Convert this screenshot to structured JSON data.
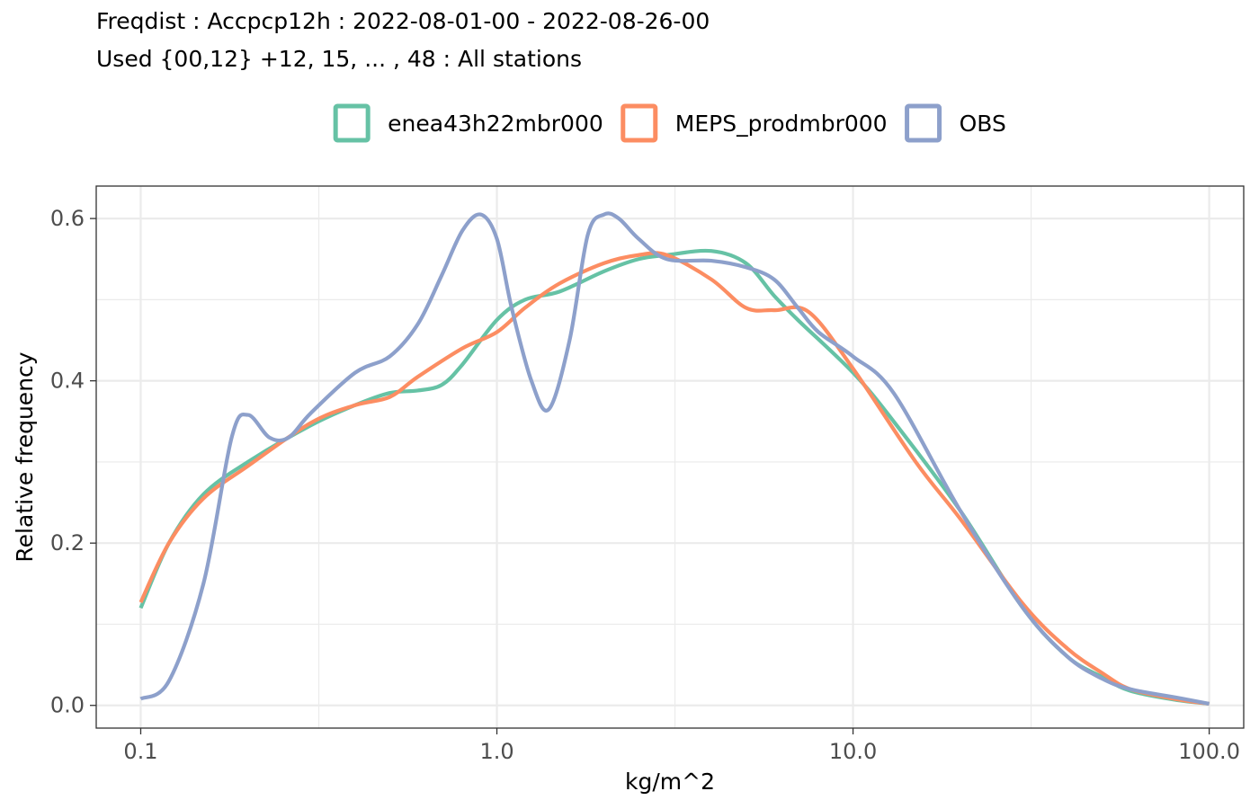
{
  "chart_data": {
    "type": "line",
    "title": "Freqdist : Accpcp12h : 2022-08-01-00 - 2022-08-26-00",
    "subtitle": "Used {00,12} +12, 15, ... , 48 : All stations",
    "xlabel": "kg/m^2",
    "ylabel": "Relative frequency",
    "x_scale": "log10",
    "xlim": [
      0.075,
      125
    ],
    "ylim": [
      -0.028,
      0.64
    ],
    "x_ticks": [
      0.1,
      1.0,
      10.0,
      100.0
    ],
    "x_tick_labels": [
      "0.1",
      "1.0",
      "10.0",
      "100.0"
    ],
    "y_ticks": [
      0.0,
      0.2,
      0.4,
      0.6
    ],
    "y_tick_labels": [
      "0.0",
      "0.2",
      "0.4",
      "0.6"
    ],
    "grid": true,
    "legend_position": "top",
    "series": [
      {
        "name": "enea43h22mbr000",
        "color": "#66c2a5",
        "points": [
          [
            0.1,
            0.12
          ],
          [
            0.12,
            0.2
          ],
          [
            0.15,
            0.26
          ],
          [
            0.2,
            0.3
          ],
          [
            0.3,
            0.345
          ],
          [
            0.4,
            0.37
          ],
          [
            0.5,
            0.385
          ],
          [
            0.6,
            0.388
          ],
          [
            0.7,
            0.395
          ],
          [
            0.8,
            0.42
          ],
          [
            1.0,
            0.475
          ],
          [
            1.2,
            0.5
          ],
          [
            1.5,
            0.51
          ],
          [
            2.0,
            0.535
          ],
          [
            2.5,
            0.55
          ],
          [
            3.0,
            0.555
          ],
          [
            4.0,
            0.56
          ],
          [
            5.0,
            0.545
          ],
          [
            6.0,
            0.505
          ],
          [
            7.0,
            0.475
          ],
          [
            10.0,
            0.41
          ],
          [
            13.0,
            0.35
          ],
          [
            20.0,
            0.24
          ],
          [
            30.0,
            0.12
          ],
          [
            40.0,
            0.06
          ],
          [
            50.0,
            0.035
          ],
          [
            60.0,
            0.018
          ],
          [
            80.0,
            0.007
          ],
          [
            100.0,
            0.002
          ]
        ]
      },
      {
        "name": "MEPS_prodmbr000",
        "color": "#fc8d62",
        "points": [
          [
            0.1,
            0.127
          ],
          [
            0.12,
            0.2
          ],
          [
            0.15,
            0.255
          ],
          [
            0.2,
            0.295
          ],
          [
            0.3,
            0.348
          ],
          [
            0.4,
            0.37
          ],
          [
            0.5,
            0.38
          ],
          [
            0.6,
            0.405
          ],
          [
            0.8,
            0.44
          ],
          [
            1.0,
            0.46
          ],
          [
            1.2,
            0.49
          ],
          [
            1.5,
            0.52
          ],
          [
            2.0,
            0.545
          ],
          [
            2.5,
            0.555
          ],
          [
            3.0,
            0.555
          ],
          [
            4.0,
            0.525
          ],
          [
            5.0,
            0.49
          ],
          [
            6.0,
            0.487
          ],
          [
            7.5,
            0.485
          ],
          [
            10.0,
            0.415
          ],
          [
            15.0,
            0.3
          ],
          [
            20.0,
            0.23
          ],
          [
            30.0,
            0.125
          ],
          [
            40.0,
            0.07
          ],
          [
            50.0,
            0.04
          ],
          [
            60.0,
            0.02
          ],
          [
            80.0,
            0.008
          ],
          [
            100.0,
            0.002
          ]
        ]
      },
      {
        "name": "OBS",
        "color": "#8da0cb",
        "points": [
          [
            0.1,
            0.008
          ],
          [
            0.12,
            0.03
          ],
          [
            0.15,
            0.15
          ],
          [
            0.18,
            0.33
          ],
          [
            0.2,
            0.358
          ],
          [
            0.23,
            0.33
          ],
          [
            0.26,
            0.33
          ],
          [
            0.3,
            0.36
          ],
          [
            0.4,
            0.41
          ],
          [
            0.5,
            0.43
          ],
          [
            0.6,
            0.47
          ],
          [
            0.7,
            0.53
          ],
          [
            0.8,
            0.585
          ],
          [
            0.9,
            0.605
          ],
          [
            1.0,
            0.575
          ],
          [
            1.1,
            0.49
          ],
          [
            1.25,
            0.4
          ],
          [
            1.4,
            0.365
          ],
          [
            1.6,
            0.45
          ],
          [
            1.8,
            0.58
          ],
          [
            2.0,
            0.605
          ],
          [
            2.2,
            0.6
          ],
          [
            2.5,
            0.575
          ],
          [
            3.0,
            0.55
          ],
          [
            4.0,
            0.548
          ],
          [
            5.0,
            0.54
          ],
          [
            6.0,
            0.525
          ],
          [
            7.0,
            0.49
          ],
          [
            8.0,
            0.46
          ],
          [
            10.0,
            0.43
          ],
          [
            13.0,
            0.385
          ],
          [
            20.0,
            0.24
          ],
          [
            30.0,
            0.12
          ],
          [
            40.0,
            0.06
          ],
          [
            50.0,
            0.033
          ],
          [
            60.0,
            0.02
          ],
          [
            80.0,
            0.01
          ],
          [
            100.0,
            0.002
          ]
        ]
      }
    ]
  }
}
